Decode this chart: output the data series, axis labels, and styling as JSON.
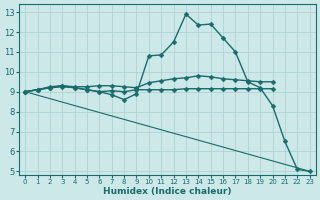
{
  "xlabel": "Humidex (Indice chaleur)",
  "xlim": [
    -0.5,
    23.5
  ],
  "ylim": [
    4.8,
    13.4
  ],
  "yticks": [
    5,
    6,
    7,
    8,
    9,
    10,
    11,
    12,
    13
  ],
  "xticks": [
    0,
    1,
    2,
    3,
    4,
    5,
    6,
    7,
    8,
    9,
    10,
    11,
    12,
    13,
    14,
    15,
    16,
    17,
    18,
    19,
    20,
    21,
    22,
    23
  ],
  "bg_color": "#cce8e8",
  "line_color": "#1a6b6b",
  "grid_color": "#aacfcf",
  "lines": [
    {
      "x": [
        0,
        1,
        2,
        3,
        4,
        5,
        6,
        7,
        8,
        9,
        10,
        11,
        12,
        13,
        14,
        15,
        16,
        17,
        18,
        19,
        20,
        21,
        22,
        23
      ],
      "y": [
        9.0,
        9.1,
        9.2,
        9.3,
        9.2,
        9.1,
        9.0,
        8.85,
        8.6,
        8.9,
        10.8,
        10.85,
        11.5,
        12.9,
        12.35,
        12.4,
        11.7,
        11.0,
        9.5,
        9.2,
        8.3,
        6.5,
        5.1,
        5.0
      ],
      "marker": "D",
      "markersize": 2.5,
      "linewidth": 1.0
    },
    {
      "x": [
        0,
        1,
        2,
        3,
        4,
        5,
        6,
        7,
        8,
        9,
        10,
        11,
        12,
        13,
        14,
        15,
        16,
        17,
        18,
        19,
        20
      ],
      "y": [
        9.0,
        9.1,
        9.25,
        9.3,
        9.25,
        9.25,
        9.3,
        9.3,
        9.25,
        9.2,
        9.45,
        9.55,
        9.65,
        9.7,
        9.8,
        9.75,
        9.65,
        9.6,
        9.55,
        9.5,
        9.5
      ],
      "marker": "D",
      "markersize": 2.5,
      "linewidth": 1.0
    },
    {
      "x": [
        0,
        1,
        2,
        3,
        4,
        5,
        6,
        7,
        8,
        9,
        10,
        11,
        12,
        13,
        14,
        15,
        16,
        17,
        18,
        19,
        20
      ],
      "y": [
        9.0,
        9.1,
        9.2,
        9.25,
        9.2,
        9.1,
        9.0,
        9.05,
        9.0,
        9.1,
        9.1,
        9.1,
        9.1,
        9.15,
        9.15,
        9.15,
        9.15,
        9.15,
        9.15,
        9.15,
        9.15
      ],
      "marker": "D",
      "markersize": 2.5,
      "linewidth": 1.0
    },
    {
      "x": [
        0,
        23
      ],
      "y": [
        9.0,
        5.0
      ],
      "marker": null,
      "markersize": 0,
      "linewidth": 0.8
    }
  ]
}
